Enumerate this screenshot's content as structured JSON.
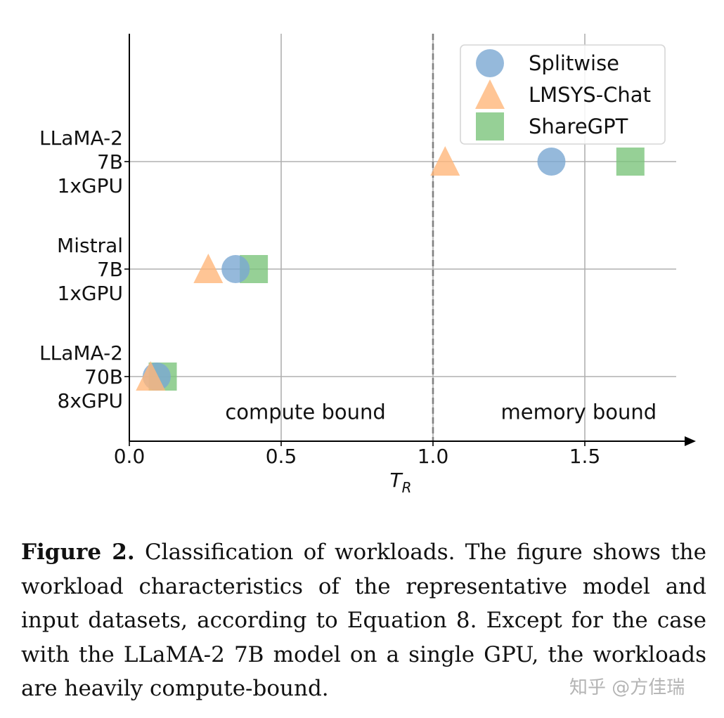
{
  "chart_data": {
    "type": "scatter",
    "xlabel": "T",
    "xlabel_subscript": "R",
    "xlim": [
      0,
      1.8
    ],
    "xticks": [
      0.0,
      0.5,
      1.0,
      1.5
    ],
    "xtick_labels": [
      "0.0",
      "0.5",
      "1.0",
      "1.5"
    ],
    "grid": true,
    "threshold_line": {
      "x": 1.0,
      "style": "dashed"
    },
    "categories": [
      {
        "key": "llama2-7b",
        "lines": [
          "LLaMA-2",
          "7B",
          "1xGPU"
        ]
      },
      {
        "key": "mistral-7b",
        "lines": [
          "Mistral",
          "7B",
          "1xGPU"
        ]
      },
      {
        "key": "llama2-70b",
        "lines": [
          "LLaMA-2",
          "70B",
          "8xGPU"
        ]
      }
    ],
    "series": [
      {
        "name": "Splitwise",
        "marker": "circle",
        "color": "#7ba7d2",
        "values": [
          1.39,
          0.35,
          0.09
        ]
      },
      {
        "name": "LMSYS-Chat",
        "marker": "triangle",
        "color": "#ffb77a",
        "values": [
          1.04,
          0.26,
          0.07
        ]
      },
      {
        "name": "ShareGPT",
        "marker": "square",
        "color": "#7cc47c",
        "values": [
          1.65,
          0.41,
          0.11
        ]
      }
    ],
    "annotations": [
      {
        "text": "compute bound",
        "x": 0.58,
        "y": -0.33
      },
      {
        "text": "memory bound",
        "x": 1.48,
        "y": -0.33
      }
    ],
    "legend_position": "top-right"
  },
  "caption": {
    "label": "Figure 2.",
    "text": "Classification of workloads. The figure shows the workload characteristics of the representative model and input datasets, according to Equation 8. Except for the case with the LLaMA-2 7B model on a single GPU, the workloads are heavily compute-bound."
  },
  "watermark": "知乎 @方佳瑞"
}
